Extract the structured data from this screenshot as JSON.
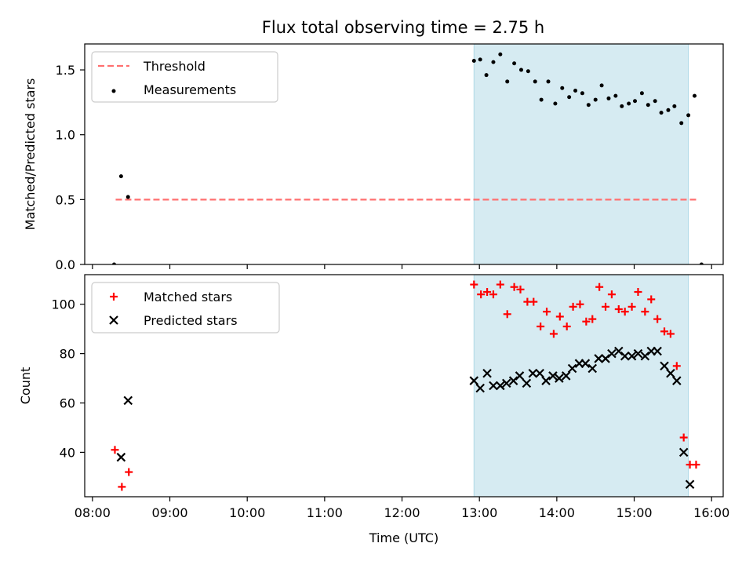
{
  "title": "Flux total observing time = 2.75 h",
  "colors": {
    "threshold": "#ff7070",
    "measurement": "#000000",
    "matched": "#ff0000",
    "predicted": "#000000",
    "span": "#add8e6"
  },
  "chart_data": [
    {
      "type": "scatter",
      "ylabel": "Matched/Predicted stars",
      "xlim": [
        7.9,
        16.15
      ],
      "ylim": [
        0,
        1.7
      ],
      "yticks": [
        "0.0",
        "0.5",
        "1.0",
        "1.5"
      ],
      "span": [
        12.93,
        15.7
      ],
      "threshold": {
        "label": "Threshold",
        "y": 0.5,
        "x": [
          8.3,
          15.8
        ]
      },
      "legend": {
        "position": "upper-left",
        "entries": [
          "Threshold",
          "Measurements"
        ]
      },
      "series": [
        {
          "name": "Measurements",
          "points": [
            [
              8.28,
              0.0
            ],
            [
              8.37,
              0.68
            ],
            [
              8.46,
              0.52
            ],
            [
              12.93,
              1.57
            ],
            [
              13.01,
              1.58
            ],
            [
              13.09,
              1.46
            ],
            [
              13.18,
              1.56
            ],
            [
              13.27,
              1.62
            ],
            [
              13.36,
              1.41
            ],
            [
              13.45,
              1.55
            ],
            [
              13.54,
              1.5
            ],
            [
              13.63,
              1.49
            ],
            [
              13.72,
              1.41
            ],
            [
              13.8,
              1.27
            ],
            [
              13.89,
              1.41
            ],
            [
              13.98,
              1.24
            ],
            [
              14.07,
              1.36
            ],
            [
              14.16,
              1.29
            ],
            [
              14.24,
              1.34
            ],
            [
              14.33,
              1.32
            ],
            [
              14.41,
              1.23
            ],
            [
              14.5,
              1.27
            ],
            [
              14.58,
              1.38
            ],
            [
              14.67,
              1.28
            ],
            [
              14.76,
              1.3
            ],
            [
              14.84,
              1.22
            ],
            [
              14.93,
              1.24
            ],
            [
              15.01,
              1.26
            ],
            [
              15.1,
              1.32
            ],
            [
              15.18,
              1.23
            ],
            [
              15.27,
              1.26
            ],
            [
              15.35,
              1.17
            ],
            [
              15.44,
              1.19
            ],
            [
              15.52,
              1.22
            ],
            [
              15.61,
              1.09
            ],
            [
              15.7,
              1.15
            ],
            [
              15.78,
              1.3
            ],
            [
              15.87,
              0.0
            ]
          ]
        }
      ]
    },
    {
      "type": "scatter",
      "xlabel": "Time (UTC)",
      "ylabel": "Count",
      "xlim": [
        7.9,
        16.15
      ],
      "ylim": [
        22,
        112
      ],
      "xticks": [
        "08:00",
        "09:00",
        "10:00",
        "11:00",
        "12:00",
        "13:00",
        "14:00",
        "15:00",
        "16:00"
      ],
      "yticks": [
        "40",
        "60",
        "80",
        "100"
      ],
      "span": [
        12.93,
        15.7
      ],
      "legend": {
        "position": "upper-left",
        "entries": [
          "Matched stars",
          "Predicted stars"
        ]
      },
      "series": [
        {
          "name": "Matched stars",
          "marker": "+",
          "points": [
            [
              8.29,
              41
            ],
            [
              8.38,
              26
            ],
            [
              8.47,
              32
            ],
            [
              12.93,
              108
            ],
            [
              13.02,
              104
            ],
            [
              13.1,
              105
            ],
            [
              13.18,
              104
            ],
            [
              13.27,
              108
            ],
            [
              13.36,
              96
            ],
            [
              13.45,
              107
            ],
            [
              13.53,
              106
            ],
            [
              13.62,
              101
            ],
            [
              13.7,
              101
            ],
            [
              13.79,
              91
            ],
            [
              13.87,
              97
            ],
            [
              13.96,
              88
            ],
            [
              14.04,
              95
            ],
            [
              14.13,
              91
            ],
            [
              14.21,
              99
            ],
            [
              14.3,
              100
            ],
            [
              14.38,
              93
            ],
            [
              14.46,
              94
            ],
            [
              14.55,
              107
            ],
            [
              14.63,
              99
            ],
            [
              14.71,
              104
            ],
            [
              14.8,
              98
            ],
            [
              14.88,
              97
            ],
            [
              14.97,
              99
            ],
            [
              15.05,
              105
            ],
            [
              15.14,
              97
            ],
            [
              15.22,
              102
            ],
            [
              15.3,
              94
            ],
            [
              15.39,
              89
            ],
            [
              15.47,
              88
            ],
            [
              15.55,
              75
            ],
            [
              15.64,
              46
            ],
            [
              15.72,
              35
            ],
            [
              15.8,
              35
            ]
          ]
        },
        {
          "name": "Predicted stars",
          "marker": "x",
          "points": [
            [
              8.37,
              38
            ],
            [
              8.46,
              61
            ],
            [
              12.93,
              69
            ],
            [
              13.01,
              66
            ],
            [
              13.1,
              72
            ],
            [
              13.18,
              67
            ],
            [
              13.27,
              67
            ],
            [
              13.35,
              68
            ],
            [
              13.44,
              69
            ],
            [
              13.52,
              71
            ],
            [
              13.61,
              68
            ],
            [
              13.69,
              72
            ],
            [
              13.78,
              72
            ],
            [
              13.86,
              69
            ],
            [
              13.95,
              71
            ],
            [
              14.03,
              70
            ],
            [
              14.12,
              71
            ],
            [
              14.2,
              74
            ],
            [
              14.29,
              76
            ],
            [
              14.37,
              76
            ],
            [
              14.46,
              74
            ],
            [
              14.54,
              78
            ],
            [
              14.63,
              78
            ],
            [
              14.71,
              80
            ],
            [
              14.8,
              81
            ],
            [
              14.88,
              79
            ],
            [
              14.97,
              79
            ],
            [
              15.05,
              80
            ],
            [
              15.14,
              79
            ],
            [
              15.22,
              81
            ],
            [
              15.3,
              81
            ],
            [
              15.39,
              75
            ],
            [
              15.47,
              72
            ],
            [
              15.55,
              69
            ],
            [
              15.64,
              40
            ],
            [
              15.72,
              27
            ]
          ]
        }
      ]
    }
  ]
}
